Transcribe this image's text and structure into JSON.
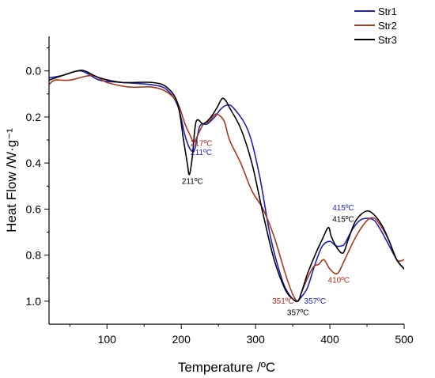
{
  "chart_data": {
    "type": "line",
    "xlabel": "Temperature /ºC",
    "ylabel": "Heat Flow /W·g⁻¹",
    "xlim": [
      22,
      500
    ],
    "ylim": [
      1.1,
      -0.15
    ],
    "y_inverted": true,
    "x_ticks": [
      100,
      200,
      300,
      400,
      500
    ],
    "x_tick_labels": [
      "100",
      "200",
      "300",
      "400",
      "500"
    ],
    "y_ticks": [
      0.0,
      0.2,
      0.4,
      0.6,
      0.8,
      1.0
    ],
    "y_tick_labels": [
      "0.0",
      "0.2",
      "0.4",
      "0.6",
      "0.8",
      "1.0"
    ],
    "legend_position": "top-right",
    "series": [
      {
        "name": "Str1",
        "color": "#1f1fbf",
        "x": [
          22,
          40,
          65,
          90,
          120,
          160,
          180,
          195,
          205,
          212,
          218,
          225,
          235,
          245,
          252,
          260,
          270,
          290,
          305,
          320,
          335,
          345,
          355,
          362,
          370,
          380,
          390,
          400,
          408,
          415,
          420,
          430,
          440,
          450,
          460,
          470,
          480,
          490,
          500
        ],
        "y": [
          0.03,
          0.02,
          0.0,
          0.04,
          0.05,
          0.06,
          0.08,
          0.15,
          0.28,
          0.34,
          0.34,
          0.24,
          0.23,
          0.2,
          0.17,
          0.15,
          0.16,
          0.26,
          0.45,
          0.72,
          0.9,
          0.97,
          1.0,
          0.98,
          0.94,
          0.84,
          0.76,
          0.74,
          0.76,
          0.76,
          0.75,
          0.69,
          0.65,
          0.64,
          0.65,
          0.7,
          0.76,
          0.82,
          0.86
        ]
      },
      {
        "name": "Str2",
        "color": "#a8391d",
        "x": [
          22,
          30,
          50,
          80,
          100,
          130,
          160,
          180,
          195,
          205,
          212,
          217,
          222,
          230,
          237,
          245,
          250,
          258,
          265,
          280,
          295,
          310,
          325,
          340,
          350,
          357,
          362,
          370,
          378,
          385,
          392,
          400,
          410,
          420,
          435,
          450,
          460,
          470,
          480,
          490,
          500
        ],
        "y": [
          0.06,
          0.04,
          0.04,
          0.02,
          0.05,
          0.07,
          0.07,
          0.09,
          0.14,
          0.23,
          0.28,
          0.31,
          0.28,
          0.23,
          0.22,
          0.19,
          0.19,
          0.22,
          0.3,
          0.4,
          0.52,
          0.6,
          0.72,
          0.88,
          0.97,
          1.0,
          0.96,
          0.9,
          0.85,
          0.84,
          0.82,
          0.86,
          0.88,
          0.82,
          0.72,
          0.65,
          0.64,
          0.68,
          0.74,
          0.82,
          0.82
        ]
      },
      {
        "name": "Str3",
        "color": "#000000",
        "x": [
          22,
          40,
          60,
          70,
          90,
          120,
          160,
          180,
          195,
          203,
          208,
          211,
          215,
          220,
          230,
          240,
          248,
          255,
          260,
          265,
          280,
          295,
          310,
          325,
          340,
          350,
          357,
          362,
          370,
          380,
          390,
          398,
          402,
          410,
          418,
          425,
          435,
          448,
          458,
          470,
          480,
          490,
          500
        ],
        "y": [
          0.04,
          0.02,
          0.0,
          0.0,
          0.03,
          0.05,
          0.05,
          0.07,
          0.14,
          0.3,
          0.4,
          0.45,
          0.37,
          0.22,
          0.23,
          0.2,
          0.16,
          0.12,
          0.13,
          0.16,
          0.25,
          0.4,
          0.62,
          0.82,
          0.95,
          0.99,
          1.0,
          0.96,
          0.88,
          0.8,
          0.73,
          0.68,
          0.72,
          0.77,
          0.79,
          0.73,
          0.65,
          0.61,
          0.62,
          0.67,
          0.74,
          0.82,
          0.86
        ]
      }
    ],
    "annotations": [
      {
        "text": "217ºC",
        "x": 227,
        "y": 0.325,
        "color": "#b0261a"
      },
      {
        "text": "211ºC",
        "x": 227,
        "y": 0.365,
        "color": "#1f1fbf"
      },
      {
        "text": "211ºC",
        "x": 215,
        "y": 0.49,
        "color": "#000000"
      },
      {
        "text": "415ºC",
        "x": 418,
        "y": 0.605,
        "color": "#1f1fbf"
      },
      {
        "text": "415ºC",
        "x": 418,
        "y": 0.655,
        "color": "#000000"
      },
      {
        "text": "410ºC",
        "x": 412,
        "y": 0.92,
        "color": "#b0261a"
      },
      {
        "text": "351ºC",
        "x": 337,
        "y": 1.01,
        "color": "#b0261a"
      },
      {
        "text": "357ºC",
        "x": 380,
        "y": 1.01,
        "color": "#1f1fbf"
      },
      {
        "text": "357ºC",
        "x": 357,
        "y": 1.06,
        "color": "#000000"
      }
    ]
  }
}
